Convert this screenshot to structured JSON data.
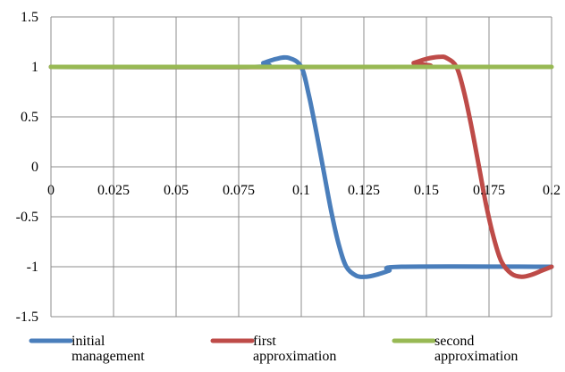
{
  "chart_data": {
    "type": "line",
    "title": "",
    "xlabel": "",
    "ylabel": "",
    "xlim": [
      0,
      0.2
    ],
    "ylim": [
      -1.5,
      1.5
    ],
    "x_ticks": [
      "0",
      "0.025",
      "0.05",
      "0.075",
      "0.1",
      "0.125",
      "0.15",
      "0.175",
      "0.2"
    ],
    "y_ticks": [
      "1.5",
      "1",
      "0.5",
      "0",
      "-0.5",
      "-1",
      "-1.5"
    ],
    "grid": true,
    "legend_position": "bottom",
    "series": [
      {
        "name": "initial management",
        "name_lines": [
          "initial",
          "management"
        ],
        "color": "#4a7ebb",
        "points": [
          [
            0,
            1
          ],
          [
            0.08,
            1
          ],
          [
            0.085,
            1.04
          ],
          [
            0.09,
            1.08
          ],
          [
            0.095,
            1.09
          ],
          [
            0.1,
            1.0
          ],
          [
            0.103,
            0.72
          ],
          [
            0.106,
            0.35
          ],
          [
            0.109,
            -0.05
          ],
          [
            0.112,
            -0.45
          ],
          [
            0.115,
            -0.78
          ],
          [
            0.118,
            -1.0
          ],
          [
            0.122,
            -1.09
          ],
          [
            0.126,
            -1.1
          ],
          [
            0.13,
            -1.08
          ],
          [
            0.135,
            -1.04
          ],
          [
            0.14,
            -1.0
          ],
          [
            0.2,
            -1.0
          ]
        ]
      },
      {
        "name": "first approximation",
        "name_lines": [
          "first",
          "approximation"
        ],
        "color": "#be4b48",
        "points": [
          [
            0,
            1
          ],
          [
            0.14,
            1
          ],
          [
            0.145,
            1.04
          ],
          [
            0.15,
            1.08
          ],
          [
            0.155,
            1.1
          ],
          [
            0.158,
            1.09
          ],
          [
            0.162,
            1.0
          ],
          [
            0.165,
            0.75
          ],
          [
            0.168,
            0.4
          ],
          [
            0.171,
            0.0
          ],
          [
            0.174,
            -0.4
          ],
          [
            0.177,
            -0.72
          ],
          [
            0.18,
            -0.95
          ],
          [
            0.184,
            -1.07
          ],
          [
            0.188,
            -1.1
          ],
          [
            0.192,
            -1.08
          ],
          [
            0.196,
            -1.04
          ],
          [
            0.2,
            -1.0
          ]
        ]
      },
      {
        "name": "second approximation",
        "name_lines": [
          "second",
          "approximation"
        ],
        "color": "#98b954",
        "points": [
          [
            0,
            1
          ],
          [
            0.2,
            1
          ]
        ]
      }
    ]
  }
}
